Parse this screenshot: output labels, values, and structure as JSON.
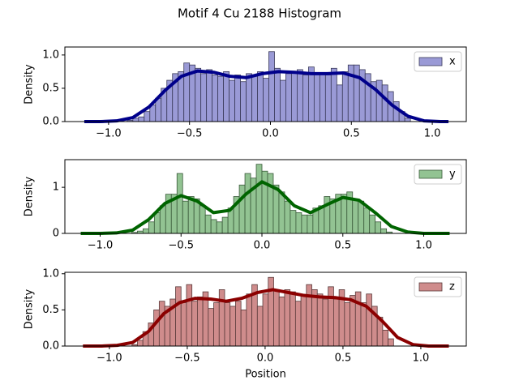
{
  "title": "Motif 4 Cu 2188 Histogram",
  "chart_data": [
    {
      "type": "histogram",
      "ylabel": "Density",
      "name": "x",
      "color": "#9a9ad6",
      "edgecolor": "#3a3a5a",
      "legend_loc": "upper right",
      "bins": [
        -0.885,
        -0.85,
        -0.815,
        -0.78,
        -0.745,
        -0.71,
        -0.675,
        -0.64,
        -0.605,
        -0.57,
        -0.535,
        -0.5,
        -0.465,
        -0.43,
        -0.395,
        -0.36,
        -0.325,
        -0.29,
        -0.255,
        -0.22,
        -0.185,
        -0.15,
        -0.115,
        -0.08,
        -0.045,
        -0.01,
        0.025,
        0.06,
        0.095,
        0.13,
        0.165,
        0.2,
        0.235,
        0.27,
        0.305,
        0.34,
        0.375,
        0.41,
        0.445,
        0.48,
        0.515,
        0.55,
        0.585,
        0.62,
        0.655,
        0.69,
        0.725,
        0.76,
        0.795,
        0.83,
        0.865
      ],
      "values": [
        0.02,
        0.05,
        0.07,
        0.15,
        0.25,
        0.35,
        0.5,
        0.62,
        0.72,
        0.75,
        0.88,
        0.85,
        0.8,
        0.72,
        0.78,
        0.7,
        0.68,
        0.75,
        0.62,
        0.7,
        0.6,
        0.72,
        0.68,
        0.75,
        0.65,
        1.05,
        0.8,
        0.62,
        0.72,
        0.75,
        0.78,
        0.7,
        0.82,
        0.72,
        0.72,
        0.7,
        0.8,
        0.55,
        0.75,
        0.85,
        0.85,
        0.78,
        0.72,
        0.6,
        0.62,
        0.55,
        0.45,
        0.3,
        0.15,
        0.05
      ],
      "line": {
        "color": "#00008b",
        "x": [
          -1.15,
          -1.05,
          -0.95,
          -0.85,
          -0.75,
          -0.65,
          -0.55,
          -0.45,
          -0.35,
          -0.25,
          -0.15,
          -0.05,
          0.05,
          0.15,
          0.25,
          0.35,
          0.45,
          0.55,
          0.65,
          0.75,
          0.85,
          0.95,
          1.05,
          1.1
        ],
        "values": [
          0,
          0,
          0.01,
          0.06,
          0.22,
          0.47,
          0.68,
          0.76,
          0.74,
          0.68,
          0.66,
          0.72,
          0.75,
          0.74,
          0.72,
          0.72,
          0.73,
          0.66,
          0.48,
          0.25,
          0.08,
          0.01,
          0,
          0
        ]
      },
      "xlim": [
        -1.27,
        1.21
      ],
      "ylim": [
        0,
        1.12
      ],
      "xticks": [
        {
          "value": -1,
          "label": "−1.0"
        },
        {
          "value": -0.5,
          "label": "−0.5"
        },
        {
          "value": 0,
          "label": "0.0"
        },
        0.5,
        {
          "value": 1,
          "label": "1.0"
        }
      ],
      "yticks": [
        {
          "value": 0,
          "label": "0.0"
        },
        0.5,
        {
          "value": 1,
          "label": "1.0"
        }
      ]
    },
    {
      "type": "histogram",
      "ylabel": "Density",
      "name": "y",
      "color": "#92c392",
      "edgecolor": "#3a5a3a",
      "legend_loc": "upper right",
      "bins": [
        -0.805,
        -0.77,
        -0.735,
        -0.7,
        -0.665,
        -0.63,
        -0.595,
        -0.56,
        -0.525,
        -0.49,
        -0.455,
        -0.42,
        -0.385,
        -0.35,
        -0.315,
        -0.28,
        -0.245,
        -0.21,
        -0.175,
        -0.14,
        -0.105,
        -0.07,
        -0.035,
        0,
        0.035,
        0.07,
        0.105,
        0.14,
        0.175,
        0.21,
        0.245,
        0.28,
        0.315,
        0.35,
        0.385,
        0.42,
        0.455,
        0.49,
        0.525,
        0.56,
        0.595,
        0.63,
        0.665,
        0.7,
        0.735,
        0.77,
        0.805
      ],
      "values": [
        0.02,
        0.05,
        0.1,
        0.25,
        0.45,
        0.6,
        0.85,
        0.85,
        1.3,
        0.7,
        0.8,
        0.75,
        0.6,
        0.4,
        0.3,
        0.25,
        0.35,
        0.55,
        0.8,
        1.05,
        1.3,
        1.2,
        1.5,
        1.35,
        1.3,
        1.05,
        0.9,
        0.7,
        0.5,
        0.45,
        0.4,
        0.4,
        0.55,
        0.6,
        0.8,
        0.75,
        0.85,
        0.85,
        0.9,
        0.75,
        0.7,
        0.55,
        0.4,
        0.25,
        0.1,
        0.03
      ],
      "line": {
        "color": "#006400",
        "x": [
          -1.12,
          -1.0,
          -0.9,
          -0.8,
          -0.7,
          -0.6,
          -0.5,
          -0.4,
          -0.3,
          -0.2,
          -0.1,
          0,
          0.1,
          0.2,
          0.3,
          0.4,
          0.5,
          0.6,
          0.7,
          0.8,
          0.9,
          1.0,
          1.1,
          1.16
        ],
        "values": [
          0,
          0,
          0.01,
          0.07,
          0.3,
          0.65,
          0.82,
          0.7,
          0.45,
          0.5,
          0.85,
          1.12,
          0.95,
          0.6,
          0.45,
          0.62,
          0.78,
          0.72,
          0.45,
          0.15,
          0.03,
          0,
          0,
          0
        ]
      },
      "xlim": [
        -1.218,
        1.263
      ],
      "ylim": [
        0,
        1.6
      ],
      "xticks": [
        {
          "value": -1,
          "label": "−1.0"
        },
        {
          "value": -0.5,
          "label": "−0.5"
        },
        {
          "value": 0,
          "label": "0.0"
        },
        0.5,
        {
          "value": 1,
          "label": "1.0"
        }
      ],
      "yticks": [
        0,
        1
      ]
    },
    {
      "type": "histogram",
      "ylabel": "Density",
      "xlabel": "Position",
      "name": "z",
      "color": "#cf8c8c",
      "edgecolor": "#5a3a3a",
      "legend_loc": "upper right",
      "bins": [
        -0.855,
        -0.82,
        -0.785,
        -0.75,
        -0.715,
        -0.68,
        -0.645,
        -0.61,
        -0.575,
        -0.54,
        -0.505,
        -0.47,
        -0.435,
        -0.4,
        -0.365,
        -0.33,
        -0.295,
        -0.26,
        -0.225,
        -0.19,
        -0.155,
        -0.12,
        -0.085,
        -0.05,
        -0.015,
        0.02,
        0.055,
        0.09,
        0.125,
        0.16,
        0.195,
        0.23,
        0.265,
        0.3,
        0.335,
        0.37,
        0.405,
        0.44,
        0.475,
        0.51,
        0.545,
        0.58,
        0.615,
        0.65,
        0.685,
        0.72,
        0.755,
        0.79,
        0.825
      ],
      "values": [
        0.02,
        0.08,
        0.2,
        0.32,
        0.5,
        0.62,
        0.55,
        0.65,
        0.82,
        0.6,
        0.85,
        0.62,
        0.68,
        0.75,
        0.52,
        0.6,
        0.78,
        0.6,
        0.55,
        0.62,
        0.5,
        0.72,
        0.85,
        0.55,
        0.72,
        0.95,
        0.78,
        0.68,
        0.78,
        0.75,
        0.62,
        0.7,
        0.85,
        0.78,
        0.72,
        0.65,
        0.82,
        0.65,
        0.78,
        0.6,
        0.7,
        0.75,
        0.6,
        0.72,
        0.55,
        0.4,
        0.22,
        0.1
      ],
      "line": {
        "color": "#8b0000",
        "x": [
          -1.17,
          -1.05,
          -0.95,
          -0.85,
          -0.75,
          -0.65,
          -0.55,
          -0.45,
          -0.35,
          -0.25,
          -0.15,
          -0.05,
          0.05,
          0.15,
          0.25,
          0.35,
          0.45,
          0.55,
          0.65,
          0.75,
          0.85,
          0.95,
          1.05,
          1.18
        ],
        "values": [
          0,
          0,
          0.01,
          0.05,
          0.2,
          0.45,
          0.6,
          0.66,
          0.65,
          0.62,
          0.66,
          0.74,
          0.78,
          0.74,
          0.7,
          0.68,
          0.67,
          0.64,
          0.55,
          0.35,
          0.12,
          0.02,
          0,
          0
        ]
      },
      "xlim": [
        -1.286,
        1.292
      ],
      "ylim": [
        0,
        1.02
      ],
      "xticks": [
        {
          "value": -1,
          "label": "−1.0"
        },
        {
          "value": -0.5,
          "label": "−0.5"
        },
        {
          "value": 0,
          "label": "0.0"
        },
        0.5,
        {
          "value": 1,
          "label": "1.0"
        }
      ],
      "yticks": [
        {
          "value": 0,
          "label": "0.0"
        },
        0.5,
        {
          "value": 1,
          "label": "1.0"
        }
      ]
    }
  ]
}
